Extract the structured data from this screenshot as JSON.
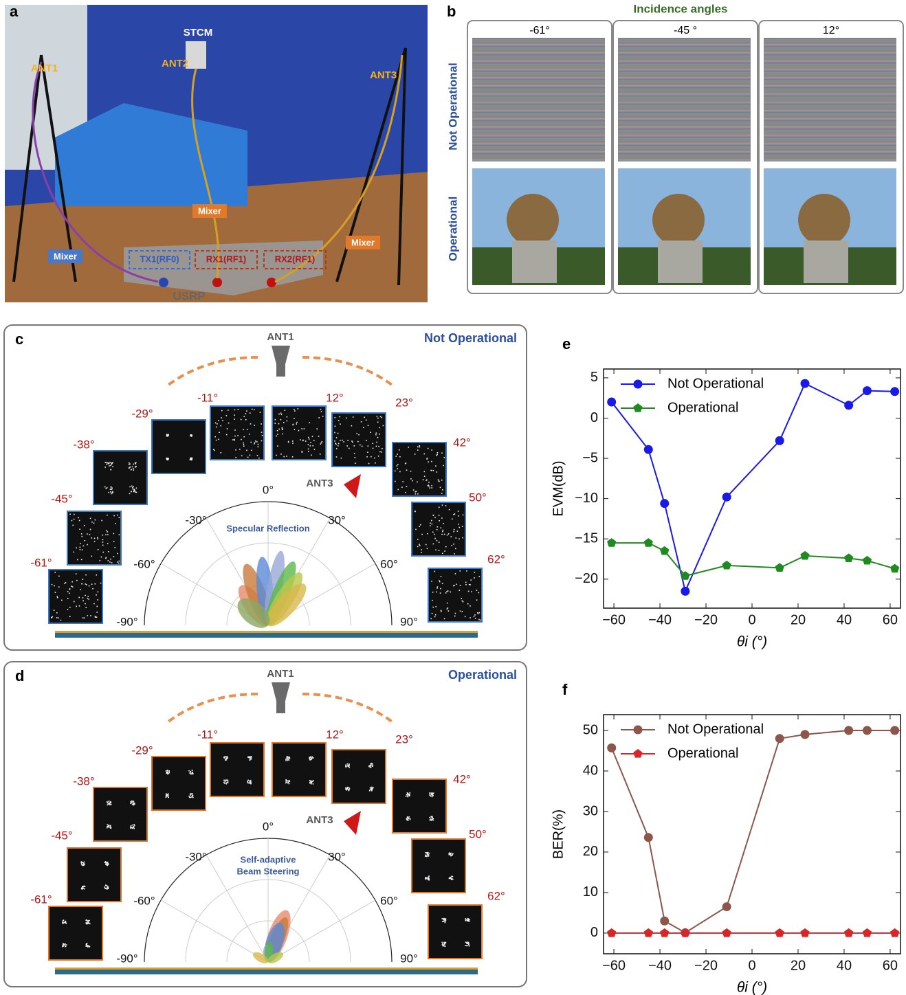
{
  "panel_a": {
    "letter": "a",
    "labels": {
      "ant1": "ANT1",
      "ant2": "ANT2",
      "stcm": "STCM",
      "ant3": "ANT3",
      "mixer_left": "Mixer",
      "mixer_mid": "Mixer",
      "mixer_right": "Mixer",
      "tx1": "TX1(RF0)",
      "rx1": "RX1(RF1)",
      "rx2": "RX2(RF1)",
      "usrp": "USRP"
    }
  },
  "panel_b": {
    "letter": "b",
    "title": "Incidence angles",
    "columns": [
      "-61°",
      "-45 °",
      "12°"
    ],
    "rows": [
      "Not Operational",
      "Operational"
    ]
  },
  "panel_c": {
    "letter": "c",
    "mode": "Not Operational",
    "ant1": "ANT1",
    "ant3": "ANT3",
    "lobe_label": [
      "Specular Reflection"
    ],
    "angles": [
      "-61°",
      "-45°",
      "-38°",
      "-29°",
      "-11°",
      "12°",
      "23°",
      "42°",
      "50°",
      "62°"
    ],
    "polar_labels": [
      "0°",
      "-30°",
      "30°",
      "-60°",
      "60°",
      "-90°",
      "90°"
    ]
  },
  "panel_d": {
    "letter": "d",
    "mode": "Operational",
    "ant1": "ANT1",
    "ant3": "ANT3",
    "lobe_label": [
      "Self-adaptive",
      "Beam Steering"
    ],
    "angles": [
      "-61°",
      "-45°",
      "-38°",
      "-29°",
      "-11°",
      "12°",
      "23°",
      "42°",
      "50°",
      "62°"
    ],
    "polar_labels": [
      "0°",
      "-30°",
      "30°",
      "-60°",
      "60°",
      "-90°",
      "90°"
    ]
  },
  "chart_data": [
    {
      "type": "line",
      "panel": "e",
      "xlabel": "θi (°)",
      "ylabel": "EVM(dB)",
      "legend": "upper left",
      "x": [
        -61,
        -45,
        -38,
        -29,
        -11,
        12,
        23,
        42,
        50,
        62
      ],
      "series": [
        {
          "name": "Not Operational",
          "color": "#1a1ae6",
          "marker": "circle",
          "values": [
            2.0,
            -3.9,
            -10.6,
            -21.5,
            -9.8,
            -2.8,
            4.3,
            1.6,
            3.4,
            3.3
          ]
        },
        {
          "name": "Operational",
          "color": "#1f8a1f",
          "marker": "pentagon",
          "values": [
            -15.5,
            -15.5,
            -16.5,
            -19.6,
            -18.3,
            -18.6,
            -17.1,
            -17.4,
            -17.7,
            -18.7
          ]
        }
      ],
      "xlim": [
        -64.5,
        64.5
      ],
      "ylim": [
        -23.6,
        6.1
      ],
      "xticks": [
        {
          "value": -60,
          "label": "−60"
        },
        {
          "value": -40,
          "label": "−40"
        },
        {
          "value": -20,
          "label": "−20"
        },
        0,
        20,
        40,
        60
      ],
      "yticks": [
        {
          "value": -20,
          "label": "−20"
        },
        {
          "value": -15,
          "label": "−15"
        },
        {
          "value": -10,
          "label": "−10"
        },
        {
          "value": -5,
          "label": "−5"
        },
        0,
        5
      ]
    },
    {
      "type": "line",
      "panel": "f",
      "xlabel": "θi (°)",
      "ylabel": "BER(%)",
      "legend": "upper left",
      "x": [
        -61,
        -45,
        -38,
        -29,
        -11,
        12,
        23,
        42,
        50,
        62
      ],
      "series": [
        {
          "name": "Not Operational",
          "color": "#8c564b",
          "marker": "circle",
          "values": [
            45.7,
            23.6,
            3.0,
            0.1,
            6.5,
            48.0,
            49.0,
            50,
            50,
            50
          ]
        },
        {
          "name": "Operational",
          "color": "#d62728",
          "marker": "pentagon",
          "values": [
            0,
            0,
            0,
            0,
            0,
            0,
            0,
            0,
            0,
            0
          ]
        }
      ],
      "xlim": [
        -64.5,
        64.5
      ],
      "ylim": [
        -5.1,
        53.9
      ],
      "xticks": [
        {
          "value": -60,
          "label": "−60"
        },
        {
          "value": -40,
          "label": "−40"
        },
        {
          "value": -20,
          "label": "−20"
        },
        0,
        20,
        40,
        60
      ],
      "yticks": [
        0,
        10,
        20,
        30,
        40,
        50
      ]
    }
  ]
}
